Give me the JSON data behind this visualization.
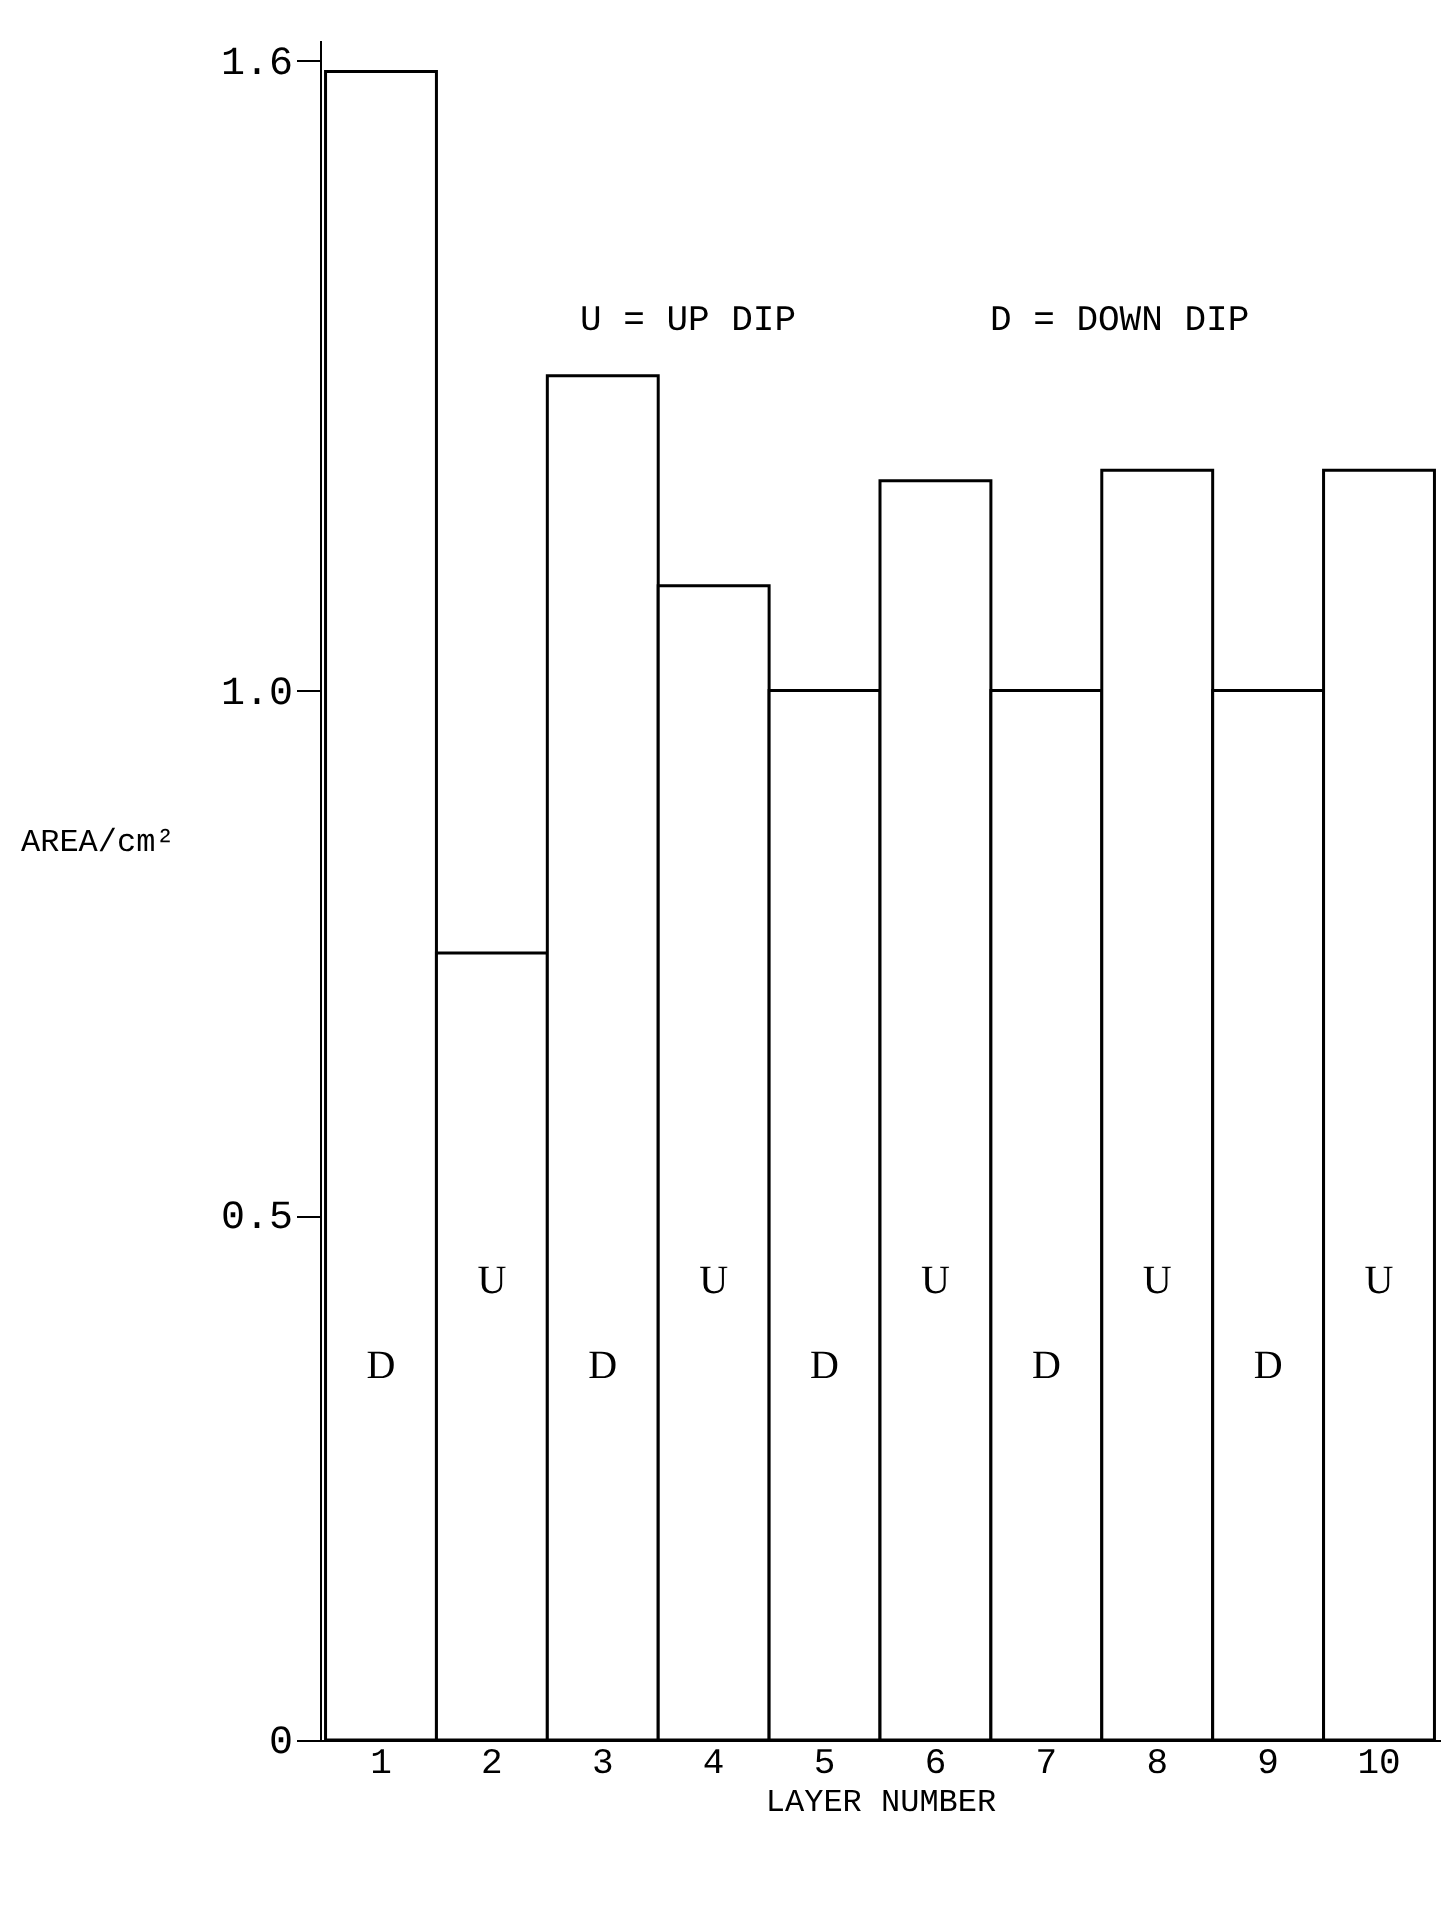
{
  "chart_data": {
    "type": "bar",
    "xlabel": "LAYER NUMBER",
    "ylabel": "AREA/cm²",
    "categories": [
      "1",
      "2",
      "3",
      "4",
      "5",
      "6",
      "7",
      "8",
      "9",
      "10"
    ],
    "values": [
      1.59,
      0.75,
      1.3,
      1.1,
      1.0,
      1.2,
      1.0,
      1.21,
      1.0,
      1.21
    ],
    "color": "#ffffff",
    "ylim": [
      0,
      1.62
    ],
    "yticks": [
      0,
      0.5,
      {
        "value": 1,
        "label": "1.0"
      },
      1.6
    ],
    "grid": false,
    "annotations": [
      "U = UP DIP",
      "D = DOWN DIP",
      "D",
      "U",
      "D",
      "U",
      "D",
      "U",
      "D",
      "U",
      "D",
      "U"
    ]
  }
}
